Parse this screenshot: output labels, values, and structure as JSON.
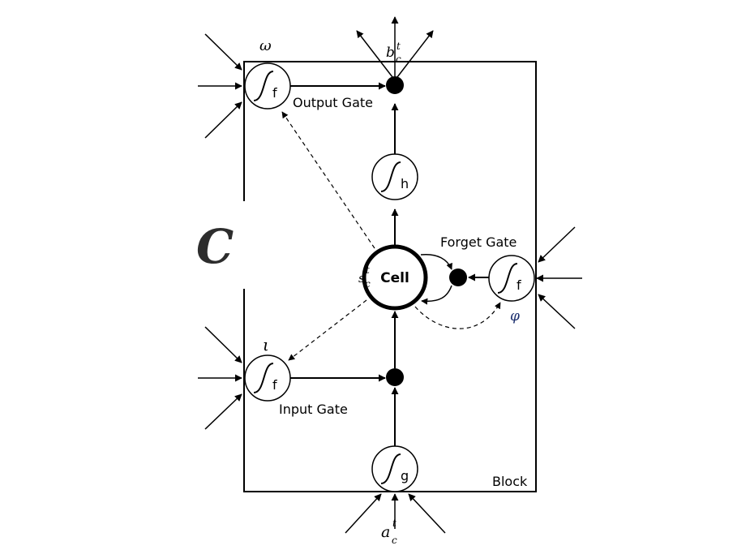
{
  "labels": {
    "output_gate": "Output Gate",
    "forget_gate": "Forget Gate",
    "input_gate": "Input Gate",
    "block": "Block",
    "cell": "Cell"
  },
  "math": {
    "omega": "ω",
    "iota": "ι",
    "phi": "φ",
    "big_c": "C",
    "b": "b",
    "b_sub": "c",
    "b_sup": "t",
    "a": "a",
    "a_sub": "c",
    "a_sup": "t",
    "s": "s",
    "s_sub": "c",
    "s_sup": "t"
  },
  "functions": {
    "output_gate_fn": "f",
    "forget_gate_fn": "f",
    "input_gate_fn": "f",
    "cell_output_fn": "h",
    "cell_input_fn": "g"
  },
  "colors": {
    "stroke": "#000000",
    "phi_color": "#1c2f6e",
    "big_c_color": "#2d2d2d"
  }
}
